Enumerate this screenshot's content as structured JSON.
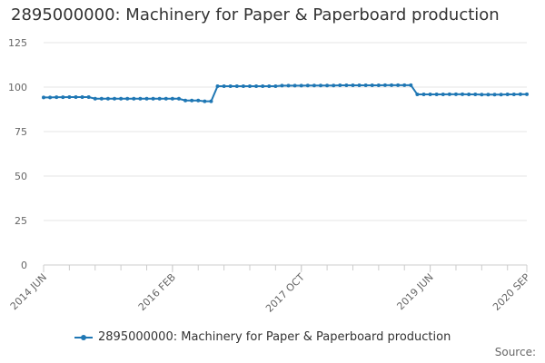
{
  "title": "2895000000: Machinery for Paper & Paperboard production",
  "source_label": "Source:",
  "colors": {
    "series": "#1f77b4",
    "grid": "#e6e6e6",
    "axis": "#cccccc",
    "text": "#666666"
  },
  "chart_data": {
    "type": "line",
    "title": "2895000000: Machinery for Paper & Paperboard production",
    "xlabel": "",
    "ylabel": "",
    "ylim": [
      0,
      125
    ],
    "yticks": [
      0,
      25,
      50,
      75,
      100,
      125
    ],
    "grid": true,
    "legend_position": "bottom",
    "x_tick_labels": [
      {
        "index": 0,
        "label": "2014 JUN"
      },
      {
        "index": 20,
        "label": "2016 FEB"
      },
      {
        "index": 40,
        "label": "2017 OCT"
      },
      {
        "index": 60,
        "label": "2019 JUN"
      },
      {
        "index": 75,
        "label": "2020 SEP"
      }
    ],
    "series": [
      {
        "name": "2895000000: Machinery for Paper & Paperboard production",
        "values": [
          94.2,
          94.2,
          94.3,
          94.3,
          94.4,
          94.4,
          94.4,
          94.4,
          93.5,
          93.5,
          93.5,
          93.5,
          93.5,
          93.5,
          93.5,
          93.5,
          93.5,
          93.5,
          93.5,
          93.5,
          93.5,
          93.5,
          92.5,
          92.5,
          92.5,
          92.0,
          92.0,
          100.5,
          100.5,
          100.5,
          100.5,
          100.5,
          100.5,
          100.5,
          100.5,
          100.5,
          100.5,
          100.8,
          100.8,
          100.8,
          100.8,
          100.9,
          100.9,
          100.9,
          100.9,
          100.9,
          101.0,
          101.0,
          101.0,
          101.0,
          101.0,
          101.0,
          101.0,
          101.1,
          101.1,
          101.1,
          101.1,
          101.1,
          95.9,
          95.9,
          95.9,
          95.9,
          95.9,
          96.0,
          96.0,
          96.0,
          95.9,
          95.9,
          95.8,
          95.8,
          95.8,
          95.8,
          95.9,
          95.9,
          96.0,
          96.0
        ]
      }
    ]
  }
}
